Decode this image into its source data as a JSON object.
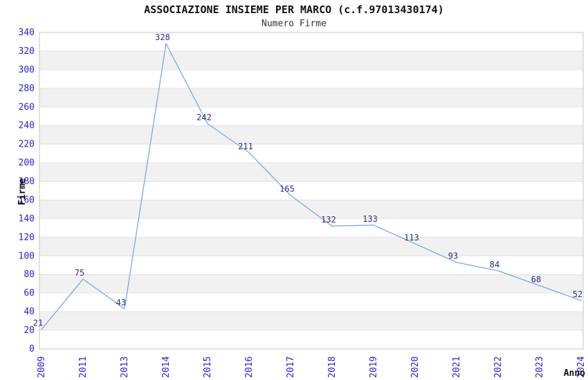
{
  "header": {
    "title": "ASSOCIAZIONE INSIEME PER MARCO (c.f.97013430174)",
    "subtitle": "Numero Firme"
  },
  "chart_data": {
    "type": "line",
    "title": "ASSOCIAZIONE INSIEME PER MARCO (c.f.97013430174)",
    "subtitle": "Numero Firme",
    "xlabel": "Anno",
    "ylabel": "Firme",
    "categories": [
      "2009",
      "2011",
      "2013",
      "2014",
      "2015",
      "2016",
      "2017",
      "2018",
      "2019",
      "2020",
      "2021",
      "2022",
      "2023",
      "2024"
    ],
    "values": [
      21,
      75,
      43,
      328,
      242,
      211,
      165,
      132,
      133,
      113,
      93,
      84,
      68,
      52
    ],
    "ylim": [
      0,
      340
    ],
    "ytick_step": 20,
    "grid": "horizontal-alternating-bands",
    "legend_position": "none",
    "data_labels_visible": true,
    "colors": {
      "line": "#7aa9dc",
      "axis_tick_label": "#2323d7",
      "data_label": "#2d2d7f",
      "band_fill": "#f1f1f1",
      "band_fill_alt": "#ffffff",
      "grid_line": "#e2e2e2",
      "plot_border": "#c6c6c6",
      "title": "#111111",
      "subtitle": "#333333",
      "background": "#ffffff"
    }
  }
}
